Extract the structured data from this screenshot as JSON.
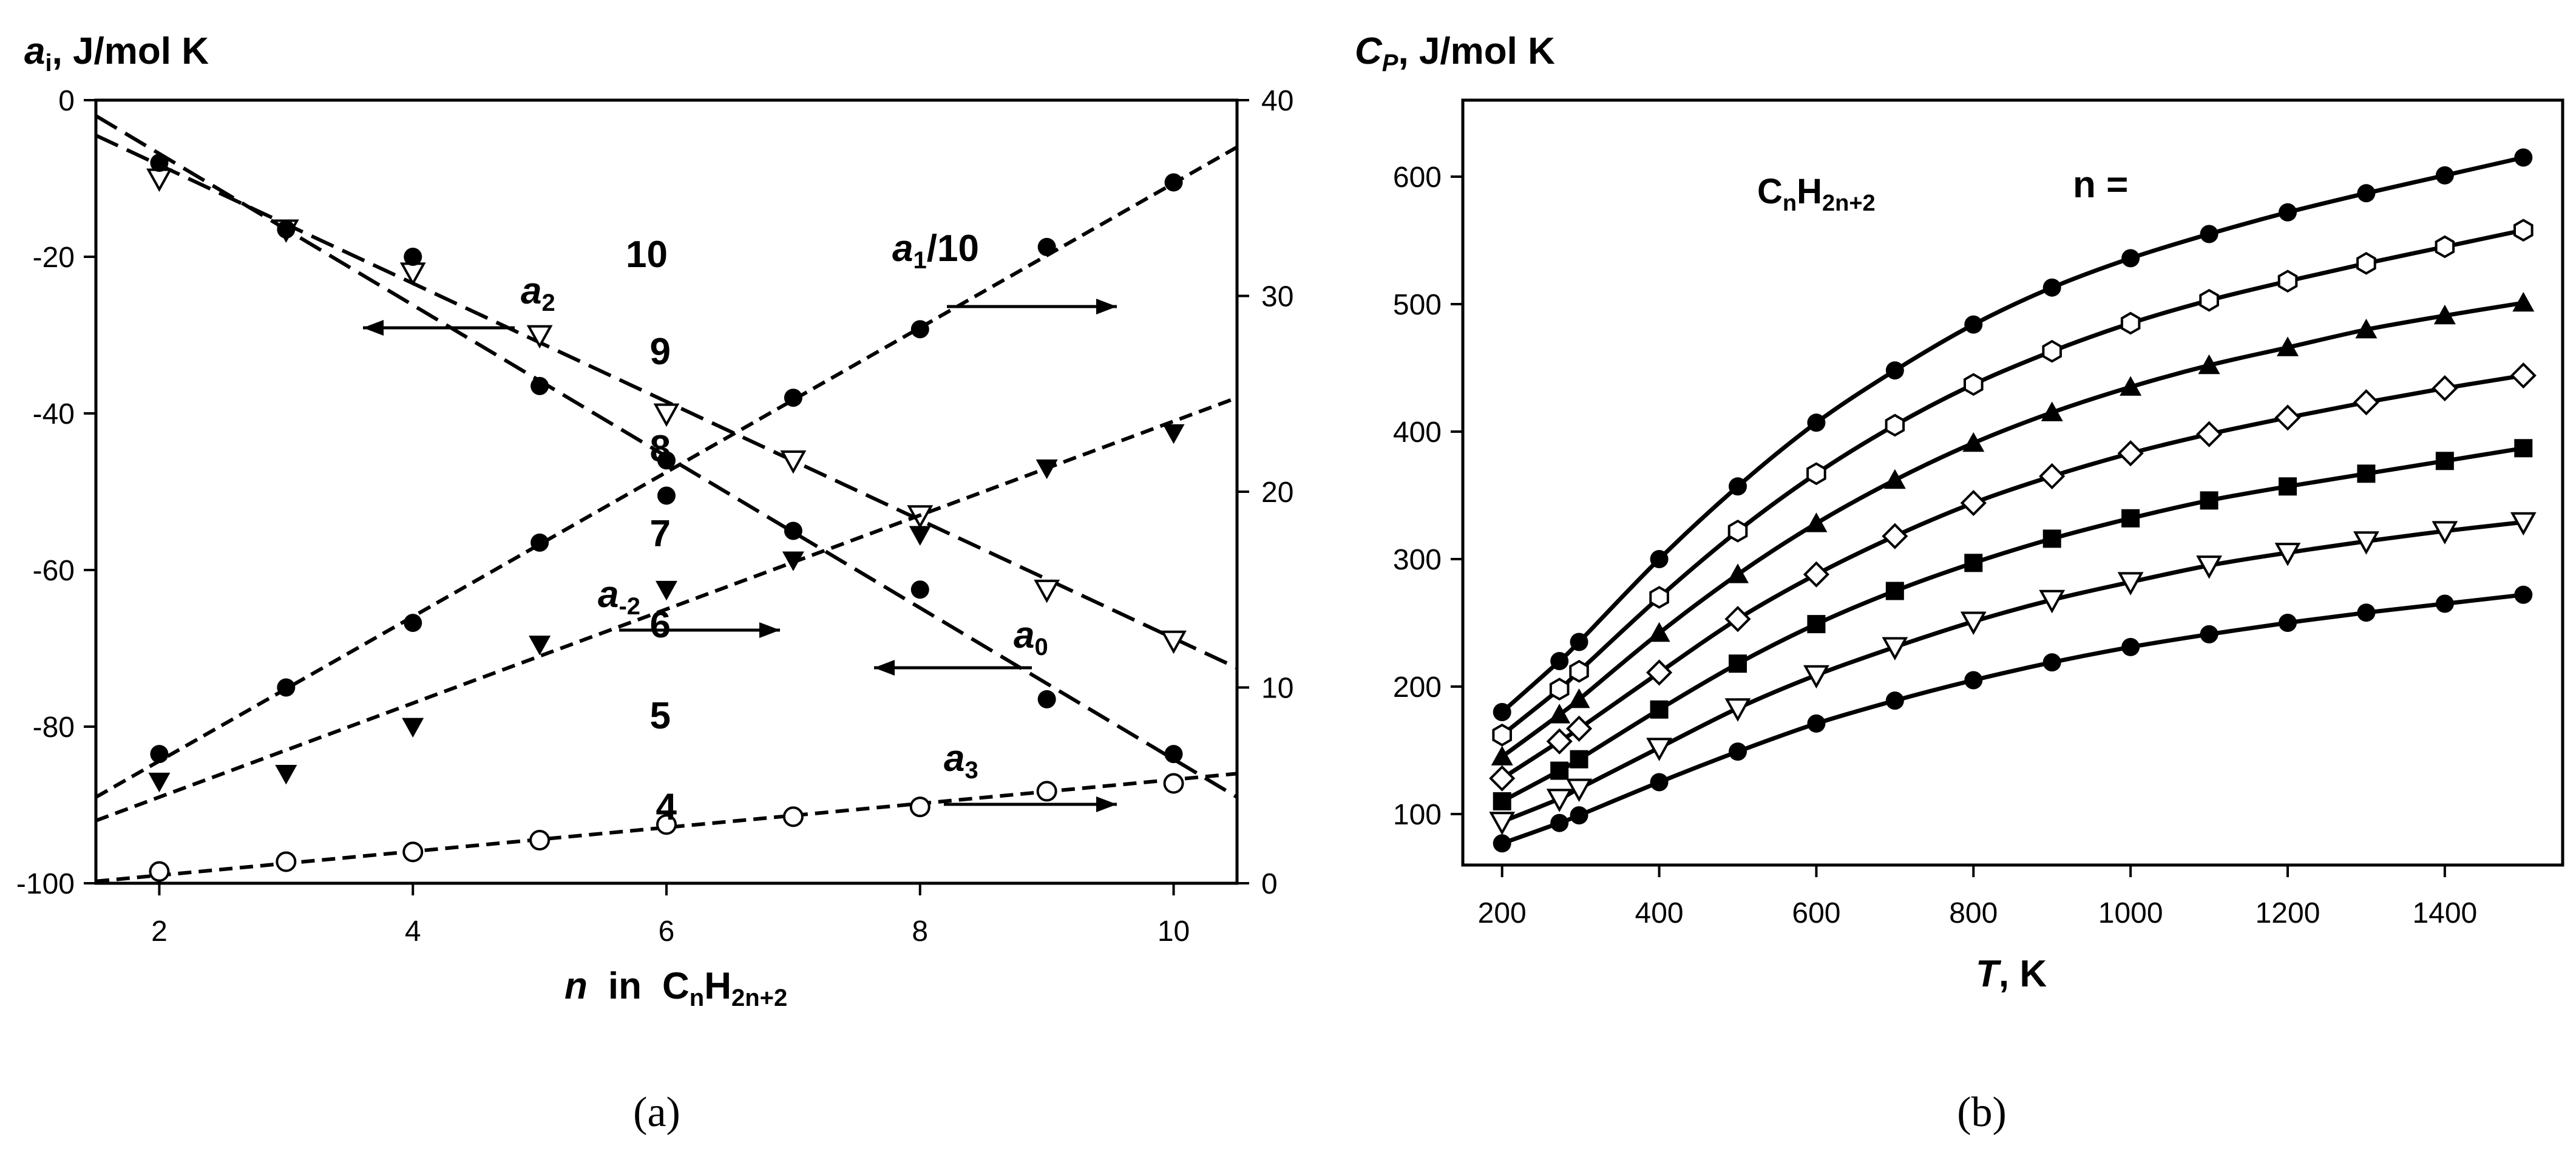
{
  "colors": {
    "ink": "#000000",
    "background": "#ffffff"
  },
  "chart_data": [
    {
      "type": "scatter",
      "panel_label": "(a)",
      "ylabel_left": "a_i, J/mol K",
      "ylabel_left_parts": {
        "sym": "a",
        "sub": "i",
        "rest": ", J/mol K"
      },
      "xlabel_parts": {
        "n": "n",
        "in": "in",
        "C": "C",
        "n_sub": "n",
        "H": "H",
        "H_sub": "2n+2"
      },
      "xlim": [
        1.5,
        10.5
      ],
      "ylim_left": [
        -100,
        0
      ],
      "ylim_right": [
        0,
        40
      ],
      "xticks": [
        2,
        4,
        6,
        8,
        10
      ],
      "yticks_left": [
        0,
        -20,
        -40,
        -60,
        -80,
        -100
      ],
      "yticks_right": [
        0,
        10,
        20,
        30,
        40
      ],
      "series": [
        {
          "name": "a2",
          "label_sym": "a",
          "label_sub": "2",
          "label_suffix": "",
          "axis": "left",
          "marker": "triangle-down-open",
          "line": "long-dash",
          "x": [
            2,
            3,
            4,
            5,
            6,
            7,
            8,
            9,
            10
          ],
          "y": [
            -10,
            -16.5,
            -22,
            -30,
            -40,
            -46,
            -53,
            -62.5,
            -69
          ],
          "fit": [
            [
              1.5,
              -4.5
            ],
            [
              10.5,
              -72.5
            ]
          ],
          "arrow": "left"
        },
        {
          "name": "a0",
          "label_sym": "a",
          "label_sub": "0",
          "label_suffix": "",
          "axis": "left",
          "marker": "circle-filled",
          "line": "long-dash",
          "x": [
            2,
            3,
            4,
            5,
            6,
            7,
            8,
            9,
            10
          ],
          "y": [
            -8,
            -16.5,
            -20,
            -36.5,
            -50.5,
            -55,
            -62.5,
            -76.5,
            -83.5
          ],
          "fit": [
            [
              1.5,
              -2
            ],
            [
              10.5,
              -89
            ]
          ],
          "arrow": "left"
        },
        {
          "name": "a1/10",
          "label_sym": "a",
          "label_sub": "1",
          "label_suffix": "/10",
          "axis": "right",
          "marker": "circle-filled",
          "line": "short-dash",
          "x": [
            2,
            3,
            4,
            5,
            6,
            7,
            8,
            9,
            10
          ],
          "y": [
            6.6,
            10,
            13.3,
            17.4,
            21.6,
            24.8,
            28.3,
            32.5,
            35.8
          ],
          "fit": [
            [
              1.5,
              4.4
            ],
            [
              10.5,
              37.6
            ]
          ],
          "arrow": "right"
        },
        {
          "name": "a-2",
          "label_sym": "a",
          "label_sub": "-2",
          "label_suffix": "",
          "axis": "right",
          "marker": "triangle-down-filled",
          "line": "short-dash",
          "x": [
            2,
            3,
            4,
            5,
            6,
            7,
            8,
            9,
            10
          ],
          "y": [
            5.2,
            5.6,
            8,
            12.2,
            15,
            16.5,
            17.8,
            21.2,
            23
          ],
          "fit": [
            [
              1.5,
              3.2
            ],
            [
              10.5,
              24.8
            ]
          ],
          "arrow": "right"
        },
        {
          "name": "a3",
          "label_sym": "a",
          "label_sub": "3",
          "label_suffix": "",
          "axis": "right",
          "marker": "circle-open",
          "line": "short-dash",
          "x": [
            2,
            3,
            4,
            5,
            6,
            7,
            8,
            9,
            10
          ],
          "y": [
            0.6,
            1.1,
            1.6,
            2.2,
            3,
            3.4,
            3.9,
            4.7,
            5.1
          ],
          "fit": [
            [
              1.5,
              0.1
            ],
            [
              10.5,
              5.6
            ]
          ],
          "arrow": "right"
        }
      ]
    },
    {
      "type": "line",
      "panel_label": "(b)",
      "ylabel_parts": {
        "sym": "C",
        "sub": "P",
        "rest": ", J/mol K"
      },
      "xlabel_parts": {
        "sym": "T",
        "rest": ", K"
      },
      "xlim": [
        150,
        1550
      ],
      "ylim": [
        60,
        660
      ],
      "xticks": [
        200,
        400,
        600,
        800,
        1000,
        1200,
        1400
      ],
      "yticks": [
        100,
        200,
        300,
        400,
        500,
        600
      ],
      "formula_parts": {
        "C": "C",
        "n_sub": "n",
        "H": "H",
        "H_sub": "2n+2"
      },
      "n_prefix": "n =",
      "x": [
        200,
        273,
        298,
        400,
        500,
        600,
        700,
        800,
        900,
        1000,
        1100,
        1200,
        1300,
        1400,
        1500
      ],
      "series": [
        {
          "name": "4",
          "marker": "circle-filled",
          "y": [
            77,
            93,
            99,
            125,
            149,
            171,
            189,
            205,
            219,
            231,
            241,
            250,
            258,
            265,
            272
          ]
        },
        {
          "name": "5",
          "marker": "triangle-down-open",
          "y": [
            94,
            112,
            120,
            152,
            183,
            209,
            231,
            251,
            268,
            282,
            295,
            305,
            314,
            322,
            329
          ]
        },
        {
          "name": "6",
          "marker": "square-filled",
          "y": [
            110,
            134,
            143,
            182,
            218,
            249,
            275,
            297,
            316,
            332,
            346,
            357,
            367,
            377,
            387
          ]
        },
        {
          "name": "7",
          "marker": "diamond-open",
          "y": [
            128,
            157,
            167,
            211,
            253,
            288,
            318,
            344,
            365,
            383,
            398,
            411,
            423,
            434,
            444
          ]
        },
        {
          "name": "8",
          "marker": "triangle-up-filled",
          "y": [
            145,
            178,
            190,
            242,
            288,
            328,
            362,
            391,
            415,
            435,
            452,
            466,
            480,
            491,
            501
          ]
        },
        {
          "name": "9",
          "marker": "hexagon-open",
          "y": [
            162,
            198,
            212,
            270,
            322,
            367,
            405,
            437,
            463,
            485,
            503,
            518,
            532,
            545,
            558
          ]
        },
        {
          "name": "10",
          "marker": "circle-filled",
          "y": [
            180,
            220,
            235,
            300,
            357,
            407,
            448,
            484,
            513,
            536,
            555,
            572,
            587,
            601,
            615
          ]
        }
      ]
    }
  ]
}
